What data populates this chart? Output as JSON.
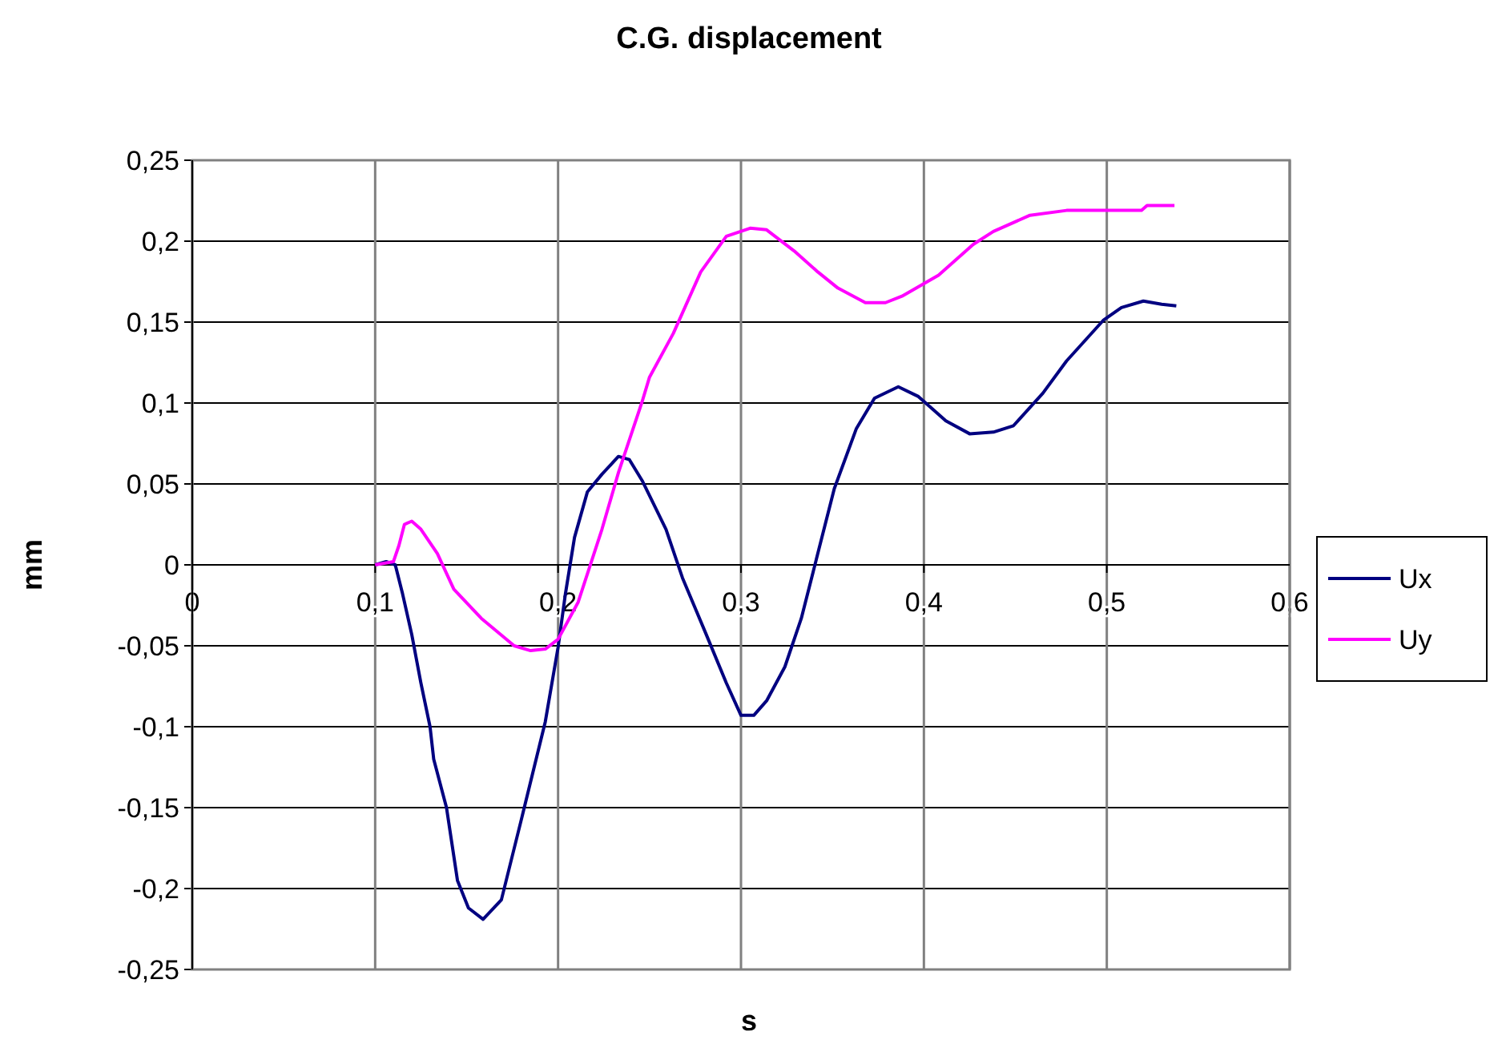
{
  "chart_data": {
    "type": "line",
    "title": "C.G. displacement",
    "xlabel": "s",
    "ylabel": "mm",
    "xlim": [
      0,
      0.6
    ],
    "ylim": [
      -0.25,
      0.25
    ],
    "xticks": [
      0,
      {
        "value": 0.1,
        "label": "0,1"
      },
      {
        "value": 0.2,
        "label": "0,2"
      },
      {
        "value": 0.3,
        "label": "0,3"
      },
      {
        "value": 0.4,
        "label": "0,4"
      },
      {
        "value": 0.5,
        "label": "0,5"
      },
      {
        "value": 0.6,
        "label": "0,6"
      }
    ],
    "yticks": [
      {
        "value": -0.25,
        "label": "-0,25"
      },
      {
        "value": -0.2,
        "label": "-0,2"
      },
      {
        "value": -0.15,
        "label": "-0,15"
      },
      {
        "value": -0.1,
        "label": "-0,1"
      },
      {
        "value": -0.05,
        "label": "-0,05"
      },
      0,
      {
        "value": 0.05,
        "label": "0,05"
      },
      {
        "value": 0.1,
        "label": "0,1"
      },
      {
        "value": 0.15,
        "label": "0,15"
      },
      {
        "value": 0.2,
        "label": "0,2"
      },
      {
        "value": 0.25,
        "label": "0,25"
      }
    ],
    "grid": true,
    "legend": "right",
    "marker": "none",
    "line_style": "solid",
    "series": [
      {
        "name": "Ux",
        "color": "#000080",
        "x": [
          0.1,
          0.106,
          0.111,
          0.115,
          0.12,
          0.125,
          0.13,
          0.132,
          0.139,
          0.145,
          0.151,
          0.159,
          0.169,
          0.18,
          0.193,
          0.2,
          0.204,
          0.209,
          0.216,
          0.224,
          0.233,
          0.239,
          0.246,
          0.259,
          0.268,
          0.281,
          0.292,
          0.3,
          0.307,
          0.314,
          0.324,
          0.333,
          0.342,
          0.351,
          0.363,
          0.373,
          0.386,
          0.397,
          0.412,
          0.425,
          0.438,
          0.449,
          0.465,
          0.478,
          0.498,
          0.508,
          0.52,
          0.53,
          0.538
        ],
        "values": [
          0,
          0.002,
          0,
          -0.018,
          -0.043,
          -0.073,
          -0.1,
          -0.12,
          -0.15,
          -0.195,
          -0.212,
          -0.219,
          -0.207,
          -0.157,
          -0.097,
          -0.051,
          -0.018,
          0.017,
          0.045,
          0.056,
          0.067,
          0.065,
          0.052,
          0.022,
          -0.008,
          -0.043,
          -0.073,
          -0.093,
          -0.093,
          -0.084,
          -0.063,
          -0.033,
          0.007,
          0.047,
          0.084,
          0.103,
          0.11,
          0.104,
          0.089,
          0.081,
          0.082,
          0.086,
          0.106,
          0.126,
          0.151,
          0.159,
          0.163,
          0.161,
          0.16
        ]
      },
      {
        "name": "Uy",
        "color": "#ff00ff",
        "x": [
          0.1,
          0.11,
          0.113,
          0.116,
          0.12,
          0.125,
          0.134,
          0.143,
          0.158,
          0.176,
          0.185,
          0.193,
          0.2,
          0.211,
          0.224,
          0.233,
          0.246,
          0.25,
          0.263,
          0.278,
          0.292,
          0.305,
          0.314,
          0.329,
          0.342,
          0.353,
          0.368,
          0.379,
          0.388,
          0.408,
          0.427,
          0.438,
          0.458,
          0.478,
          0.519,
          0.522,
          0.537
        ],
        "values": [
          0,
          0.002,
          0.012,
          0.025,
          0.027,
          0.022,
          0.007,
          -0.015,
          -0.033,
          -0.05,
          -0.053,
          -0.052,
          -0.046,
          -0.023,
          0.022,
          0.057,
          0.101,
          0.116,
          0.143,
          0.181,
          0.203,
          0.208,
          0.207,
          0.194,
          0.181,
          0.171,
          0.162,
          0.162,
          0.166,
          0.179,
          0.198,
          0.206,
          0.216,
          0.219,
          0.219,
          0.222,
          0.222
        ]
      }
    ]
  }
}
